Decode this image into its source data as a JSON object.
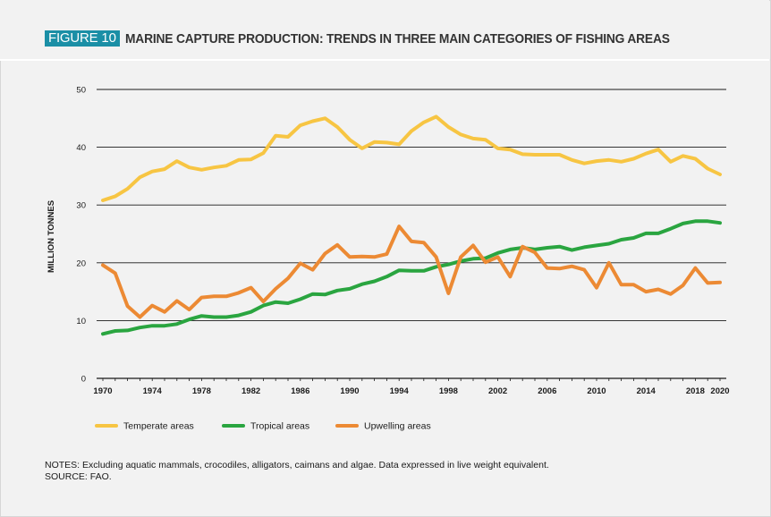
{
  "header": {
    "figure_label": "FIGURE 10",
    "title": "MARINE CAPTURE PRODUCTION: TRENDS IN THREE MAIN CATEGORIES OF FISHING AREAS"
  },
  "notes": {
    "notes_line": "NOTES: Excluding aquatic mammals, crocodiles, alligators, caimans and algae. Data expressed in live weight equivalent.",
    "source_line": "SOURCE: FAO."
  },
  "colors": {
    "temperate": "#f7c543",
    "tropical": "#2aa540",
    "upwelling": "#ec8a34",
    "accent": "#1b8fa6",
    "gridline": "#1a1a1a"
  },
  "chart_data": {
    "type": "line",
    "title": "MARINE CAPTURE PRODUCTION: TRENDS IN THREE MAIN CATEGORIES OF FISHING AREAS",
    "xlabel": "",
    "ylabel": "MILLION TONNES",
    "xlim": [
      1970,
      2020
    ],
    "ylim": [
      0,
      50
    ],
    "y_ticks": [
      0,
      10,
      20,
      30,
      40,
      50
    ],
    "x_ticks": [
      1970,
      1974,
      1978,
      1982,
      1986,
      1990,
      1994,
      1998,
      2002,
      2006,
      2010,
      2014,
      2018,
      2020
    ],
    "grid": "horizontal",
    "legend_position": "bottom-left",
    "x": [
      1970,
      1971,
      1972,
      1973,
      1974,
      1975,
      1976,
      1977,
      1978,
      1979,
      1980,
      1981,
      1982,
      1983,
      1984,
      1985,
      1986,
      1987,
      1988,
      1989,
      1990,
      1991,
      1992,
      1993,
      1994,
      1995,
      1996,
      1997,
      1998,
      1999,
      2000,
      2001,
      2002,
      2003,
      2004,
      2005,
      2006,
      2007,
      2008,
      2009,
      2010,
      2011,
      2012,
      2013,
      2014,
      2015,
      2016,
      2017,
      2018,
      2019,
      2020
    ],
    "series": [
      {
        "name": "Temperate areas",
        "color_key": "temperate",
        "values": [
          30.8,
          31.5,
          32.8,
          34.8,
          35.8,
          36.2,
          37.6,
          36.5,
          36.1,
          36.5,
          36.8,
          37.8,
          37.9,
          39.0,
          42.0,
          41.8,
          43.8,
          44.5,
          45.0,
          43.5,
          41.3,
          39.8,
          40.9,
          40.8,
          40.5,
          42.8,
          44.3,
          45.3,
          43.5,
          42.2,
          41.5,
          41.3,
          39.8,
          39.6,
          38.8,
          38.7,
          38.7,
          38.7,
          37.8,
          37.2,
          37.6,
          37.8,
          37.5,
          38.0,
          38.9,
          39.6,
          37.5,
          38.5,
          38.0,
          36.3,
          35.3
        ]
      },
      {
        "name": "Tropical areas",
        "color_key": "tropical",
        "values": [
          7.7,
          8.2,
          8.3,
          8.8,
          9.1,
          9.1,
          9.4,
          10.2,
          10.8,
          10.6,
          10.6,
          10.9,
          11.5,
          12.6,
          13.2,
          13.0,
          13.7,
          14.6,
          14.5,
          15.2,
          15.5,
          16.3,
          16.8,
          17.6,
          18.7,
          18.6,
          18.6,
          19.3,
          19.7,
          20.3,
          20.7,
          20.8,
          21.7,
          22.3,
          22.6,
          22.3,
          22.6,
          22.8,
          22.2,
          22.7,
          23.0,
          23.3,
          24.0,
          24.3,
          25.1,
          25.1,
          25.9,
          26.8,
          27.2,
          27.2,
          26.9
        ]
      },
      {
        "name": "Upwelling areas",
        "color_key": "upwelling",
        "values": [
          19.6,
          18.2,
          12.5,
          10.6,
          12.6,
          11.5,
          13.4,
          11.9,
          14.0,
          14.2,
          14.2,
          14.8,
          15.7,
          13.3,
          15.5,
          17.3,
          19.9,
          18.8,
          21.6,
          23.1,
          21.0,
          21.1,
          21.0,
          21.5,
          26.3,
          23.7,
          23.5,
          21.0,
          14.7,
          21.0,
          23.0,
          20.1,
          21.0,
          17.6,
          22.8,
          21.8,
          19.1,
          19.0,
          19.4,
          18.8,
          15.7,
          20.0,
          16.2,
          16.2,
          15.0,
          15.4,
          14.6,
          16.1,
          19.1,
          16.5,
          16.6
        ]
      }
    ]
  }
}
